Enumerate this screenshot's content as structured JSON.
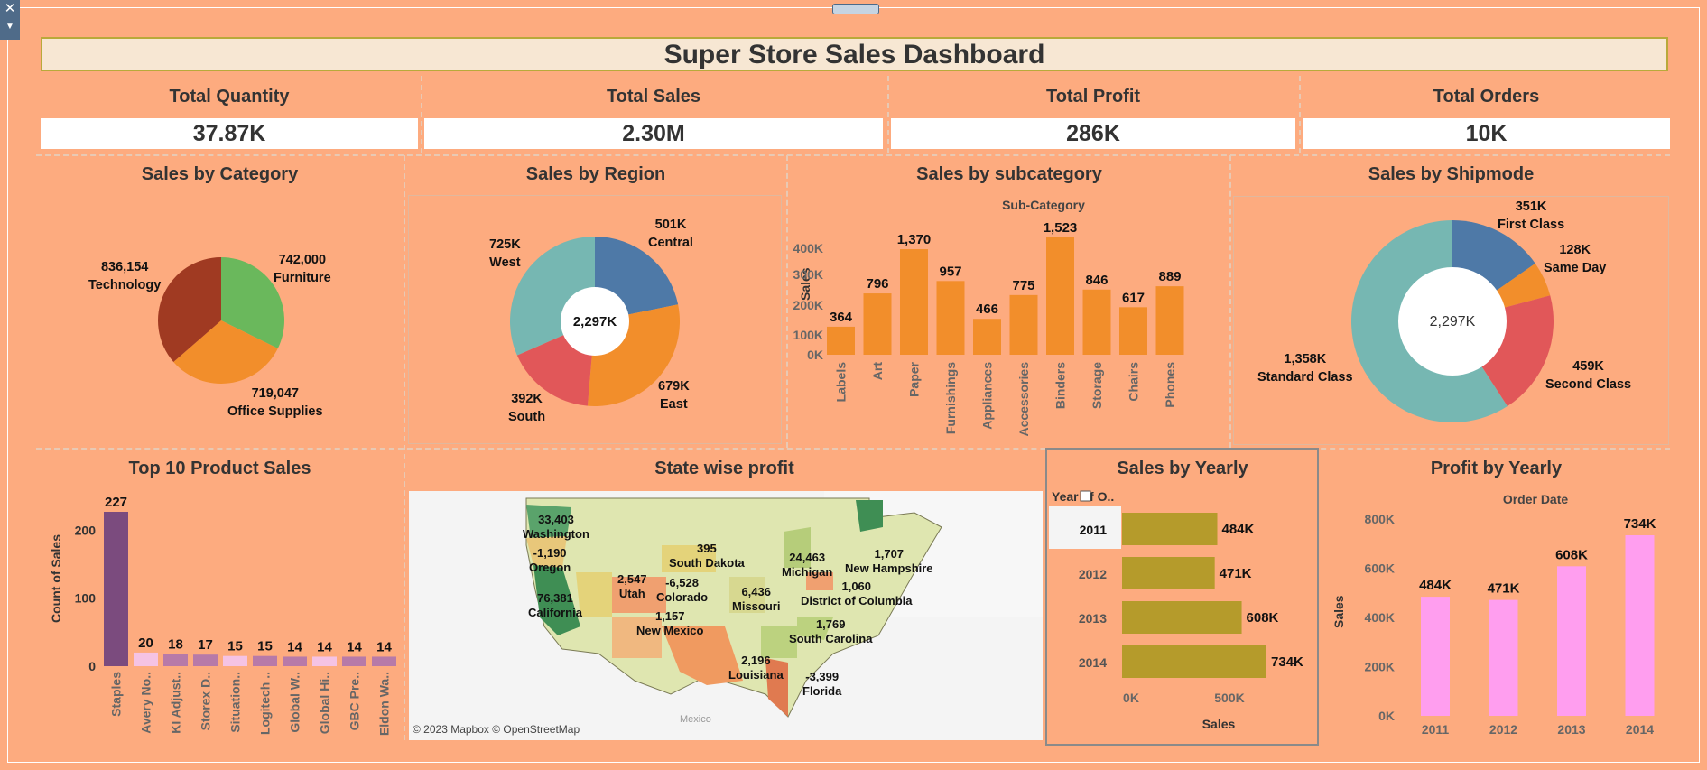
{
  "dashboard": {
    "title": "Super Store Sales Dashboard"
  },
  "kpis": [
    {
      "title": "Total Quantity",
      "value": "37.87K"
    },
    {
      "title": "Total Sales",
      "value": "2.30M"
    },
    {
      "title": "Total Profit",
      "value": "286K"
    },
    {
      "title": "Total Orders",
      "value": "10K"
    }
  ],
  "sections": {
    "category": "Sales by Category",
    "region": "Sales by Region",
    "subcategory": "Sales by subcategory",
    "shipmode": "Sales by Shipmode",
    "top10": "Top 10 Product Sales",
    "state": "State wise profit",
    "yearly_sales": "Sales by Yearly",
    "yearly_profit": "Profit by Yearly"
  },
  "map": {
    "attribution": "© 2023 Mapbox © OpenStreetMap",
    "country_label": "Mexico"
  },
  "colors": {
    "background": "#fdab7f",
    "bar_orange": "#f28e2b",
    "bar_olive": "#b59b2b",
    "bar_pink": "#ff9eef",
    "purple": "#7b4b7e"
  },
  "chart_data": [
    {
      "type": "pie",
      "title": "Sales by Category",
      "slices": [
        {
          "label": "Furniture",
          "value": 742000,
          "value_label": "742,000",
          "color": "#6ab85c"
        },
        {
          "label": "Office Supplies",
          "value": 719047,
          "value_label": "719,047",
          "color": "#f28e2b"
        },
        {
          "label": "Technology",
          "value": 836154,
          "value_label": "836,154",
          "color": "#a03a22"
        }
      ]
    },
    {
      "type": "pie",
      "title": "Sales by Region",
      "center_label": "2,297K",
      "slices": [
        {
          "label": "Central",
          "value": 501,
          "value_label": "501K",
          "color": "#4e79a7"
        },
        {
          "label": "East",
          "value": 679,
          "value_label": "679K",
          "color": "#f28e2b"
        },
        {
          "label": "South",
          "value": 392,
          "value_label": "392K",
          "color": "#e15759"
        },
        {
          "label": "West",
          "value": 725,
          "value_label": "725K",
          "color": "#76b7b2"
        }
      ]
    },
    {
      "type": "bar",
      "title": "Sales by subcategory",
      "header": "Sub-Category",
      "ylabel": "Sales",
      "categories": [
        "Labels",
        "Art",
        "Paper",
        "Furnishings",
        "Appliances",
        "Accessories",
        "Binders",
        "Storage",
        "Chairs",
        "Phones"
      ],
      "values": [
        364,
        796,
        1370,
        957,
        466,
        775,
        1523,
        846,
        617,
        889
      ],
      "value_labels": [
        "364",
        "796",
        "1,370",
        "957",
        "466",
        "775",
        "1,523",
        "846",
        "617",
        "889"
      ],
      "yticks": [
        "0K",
        "100K",
        "200K",
        "300K",
        "400K"
      ]
    },
    {
      "type": "pie",
      "title": "Sales by Shipmode",
      "center_label": "2,297K",
      "slices": [
        {
          "label": "First Class",
          "value": 351,
          "value_label": "351K",
          "color": "#4e79a7"
        },
        {
          "label": "Same Day",
          "value": 128,
          "value_label": "128K",
          "color": "#f28e2b"
        },
        {
          "label": "Second Class",
          "value": 459,
          "value_label": "459K",
          "color": "#e15759"
        },
        {
          "label": "Standard Class",
          "value": 1358,
          "value_label": "1,358K",
          "color": "#76b7b2"
        }
      ]
    },
    {
      "type": "bar",
      "title": "Top 10 Product Sales",
      "ylabel": "Count of Sales",
      "categories": [
        "Staples",
        "Avery No..",
        "KI Adjust..",
        "Storex D..",
        "Situation..",
        "Logitech ..",
        "Global W..",
        "Global Hi..",
        "GBC Pre..",
        "Eldon Wa.."
      ],
      "values": [
        227,
        20,
        18,
        17,
        15,
        15,
        14,
        14,
        14,
        14
      ],
      "yticks": [
        "0",
        "100",
        "200"
      ]
    },
    {
      "type": "map",
      "title": "State wise profit",
      "points": [
        {
          "state": "Washington",
          "value": "33,403"
        },
        {
          "state": "Oregon",
          "value": "-1,190"
        },
        {
          "state": "California",
          "value": "76,381"
        },
        {
          "state": "Utah",
          "value": "2,547"
        },
        {
          "state": "Colorado",
          "value": "-6,528"
        },
        {
          "state": "New Mexico",
          "value": "1,157"
        },
        {
          "state": "South Dakota",
          "value": "395"
        },
        {
          "state": "Missouri",
          "value": "6,436"
        },
        {
          "state": "Michigan",
          "value": "24,463"
        },
        {
          "state": "New Hampshire",
          "value": "1,707"
        },
        {
          "state": "District of Columbia",
          "value": "1,060"
        },
        {
          "state": "South Carolina",
          "value": "1,769"
        },
        {
          "state": "Louisiana",
          "value": "2,196"
        },
        {
          "state": "Florida",
          "value": "-3,399"
        }
      ]
    },
    {
      "type": "bar",
      "orientation": "horizontal",
      "title": "Sales by Yearly",
      "header": "Year of O..",
      "xlabel": "Sales",
      "categories": [
        "2011",
        "2012",
        "2013",
        "2014"
      ],
      "values": [
        484,
        471,
        608,
        734
      ],
      "value_labels": [
        "484K",
        "471K",
        "608K",
        "734K"
      ],
      "xticks": [
        "0K",
        "500K"
      ]
    },
    {
      "type": "bar",
      "title": "Profit by Yearly",
      "header": "Order Date",
      "ylabel": "Sales",
      "categories": [
        "2011",
        "2012",
        "2013",
        "2014"
      ],
      "values": [
        484,
        471,
        608,
        734
      ],
      "value_labels": [
        "484K",
        "471K",
        "608K",
        "734K"
      ],
      "yticks": [
        "0K",
        "200K",
        "400K",
        "600K",
        "800K"
      ]
    }
  ]
}
